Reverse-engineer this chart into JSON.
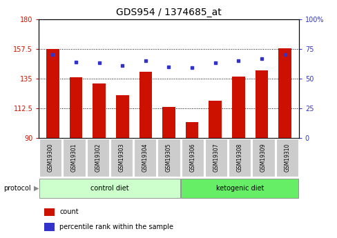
{
  "title": "GDS954 / 1374685_at",
  "samples": [
    "GSM19300",
    "GSM19301",
    "GSM19302",
    "GSM19303",
    "GSM19304",
    "GSM19305",
    "GSM19306",
    "GSM19307",
    "GSM19308",
    "GSM19309",
    "GSM19310"
  ],
  "bar_values": [
    157.5,
    136.0,
    131.5,
    122.5,
    140.0,
    113.5,
    102.0,
    118.0,
    136.5,
    141.0,
    158.0
  ],
  "percentile_values": [
    70,
    64,
    63,
    61,
    65,
    60,
    59,
    63,
    65,
    67,
    70
  ],
  "ylim_left": [
    90,
    180
  ],
  "ylim_right": [
    0,
    100
  ],
  "yticks_left": [
    90,
    112.5,
    135,
    157.5,
    180
  ],
  "yticks_right": [
    0,
    25,
    50,
    75,
    100
  ],
  "bar_color": "#cc1100",
  "dot_color": "#3333cc",
  "bar_bottom": 90,
  "grid_lines": [
    112.5,
    135,
    157.5
  ],
  "group1_label": "control diet",
  "group2_label": "ketogenic diet",
  "group1_count": 6,
  "group2_count": 5,
  "protocol_label": "protocol",
  "legend_count": "count",
  "legend_percentile": "percentile rank within the sample",
  "bg_color_control": "#ccffcc",
  "bg_color_ketogenic": "#66ee66",
  "tick_bg_color": "#cccccc",
  "title_fontsize": 10,
  "tick_fontsize": 7,
  "label_fontsize": 7
}
